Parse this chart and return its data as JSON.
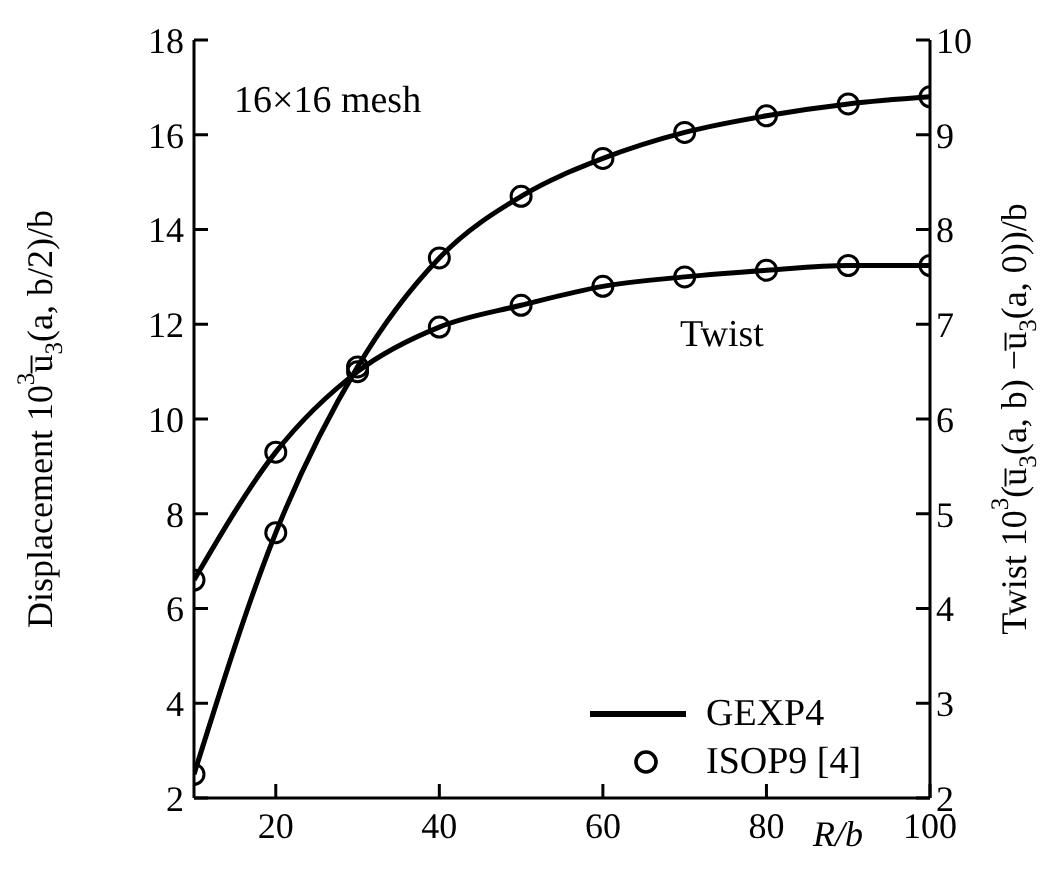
{
  "chart_data": {
    "type": "line",
    "xlabel": "R/b",
    "ylabel": "Displacement 10$^{3}$u̅$_{3}$(a, b/2)/b",
    "y2label": "Twist 10$^{3}$(u̅$_{3}$(a, b) −u̅$_{3}$(a, 0))/b",
    "annotations": [
      "16×16 mesh",
      "Twist"
    ],
    "x": [
      10,
      20,
      30,
      40,
      50,
      60,
      70,
      80,
      90,
      100
    ],
    "series": [
      {
        "name": "GEXP4",
        "marker": "none",
        "color": "#000000",
        "values": [
          2.5,
          7.6,
          11.1,
          13.4,
          14.7,
          15.5,
          16.05,
          16.4,
          16.65,
          16.8
        ]
      },
      {
        "marker": "none",
        "color": "#000000",
        "axis": "y2",
        "values": [
          4.3,
          5.65,
          6.5,
          6.97,
          7.2,
          7.4,
          7.5,
          7.57,
          7.62,
          7.62
        ]
      },
      {
        "name": "ISOP9 [4]",
        "type": "scatter",
        "marker": "circle",
        "color": "#000000",
        "values": [
          2.5,
          7.6,
          11.1,
          13.4,
          14.7,
          15.5,
          16.05,
          16.4,
          16.65,
          16.8
        ]
      },
      {
        "type": "scatter",
        "marker": "circle",
        "color": "#000000",
        "axis": "y2",
        "values": [
          4.3,
          5.65,
          6.5,
          6.97,
          7.2,
          7.4,
          7.5,
          7.57,
          7.62,
          7.62
        ]
      }
    ],
    "xlim": [
      10,
      100
    ],
    "xticks": [
      20,
      40,
      60,
      80,
      100
    ],
    "ylim": [
      2,
      18
    ],
    "yticks": [
      2,
      4,
      6,
      8,
      10,
      12,
      14,
      16,
      18
    ],
    "y2lim": [
      2,
      10
    ],
    "y2ticks": [
      2,
      3,
      4,
      5,
      6,
      7,
      8,
      9,
      10
    ],
    "grid": false,
    "legend": "bottom right"
  }
}
